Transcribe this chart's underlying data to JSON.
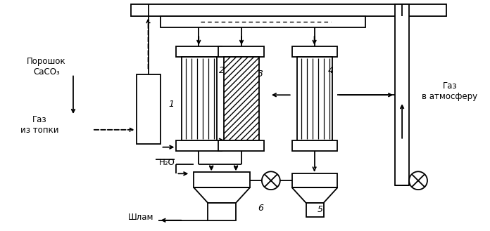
{
  "background": "#ffffff",
  "line_color": "#000000",
  "labels": {
    "poroshok": "Порошок\nCaCO₃",
    "gaz_iz_topki": "Газ\nиз топки",
    "gaz_v_atm": "Газ\nв атмосферу",
    "h2o": "H₂O",
    "shlam": "Шлам",
    "num1": "1",
    "num2": "2",
    "num3": "3",
    "num4": "4",
    "num5": "5",
    "num6": "6"
  },
  "figsize": [
    6.96,
    3.29
  ],
  "dpi": 100
}
